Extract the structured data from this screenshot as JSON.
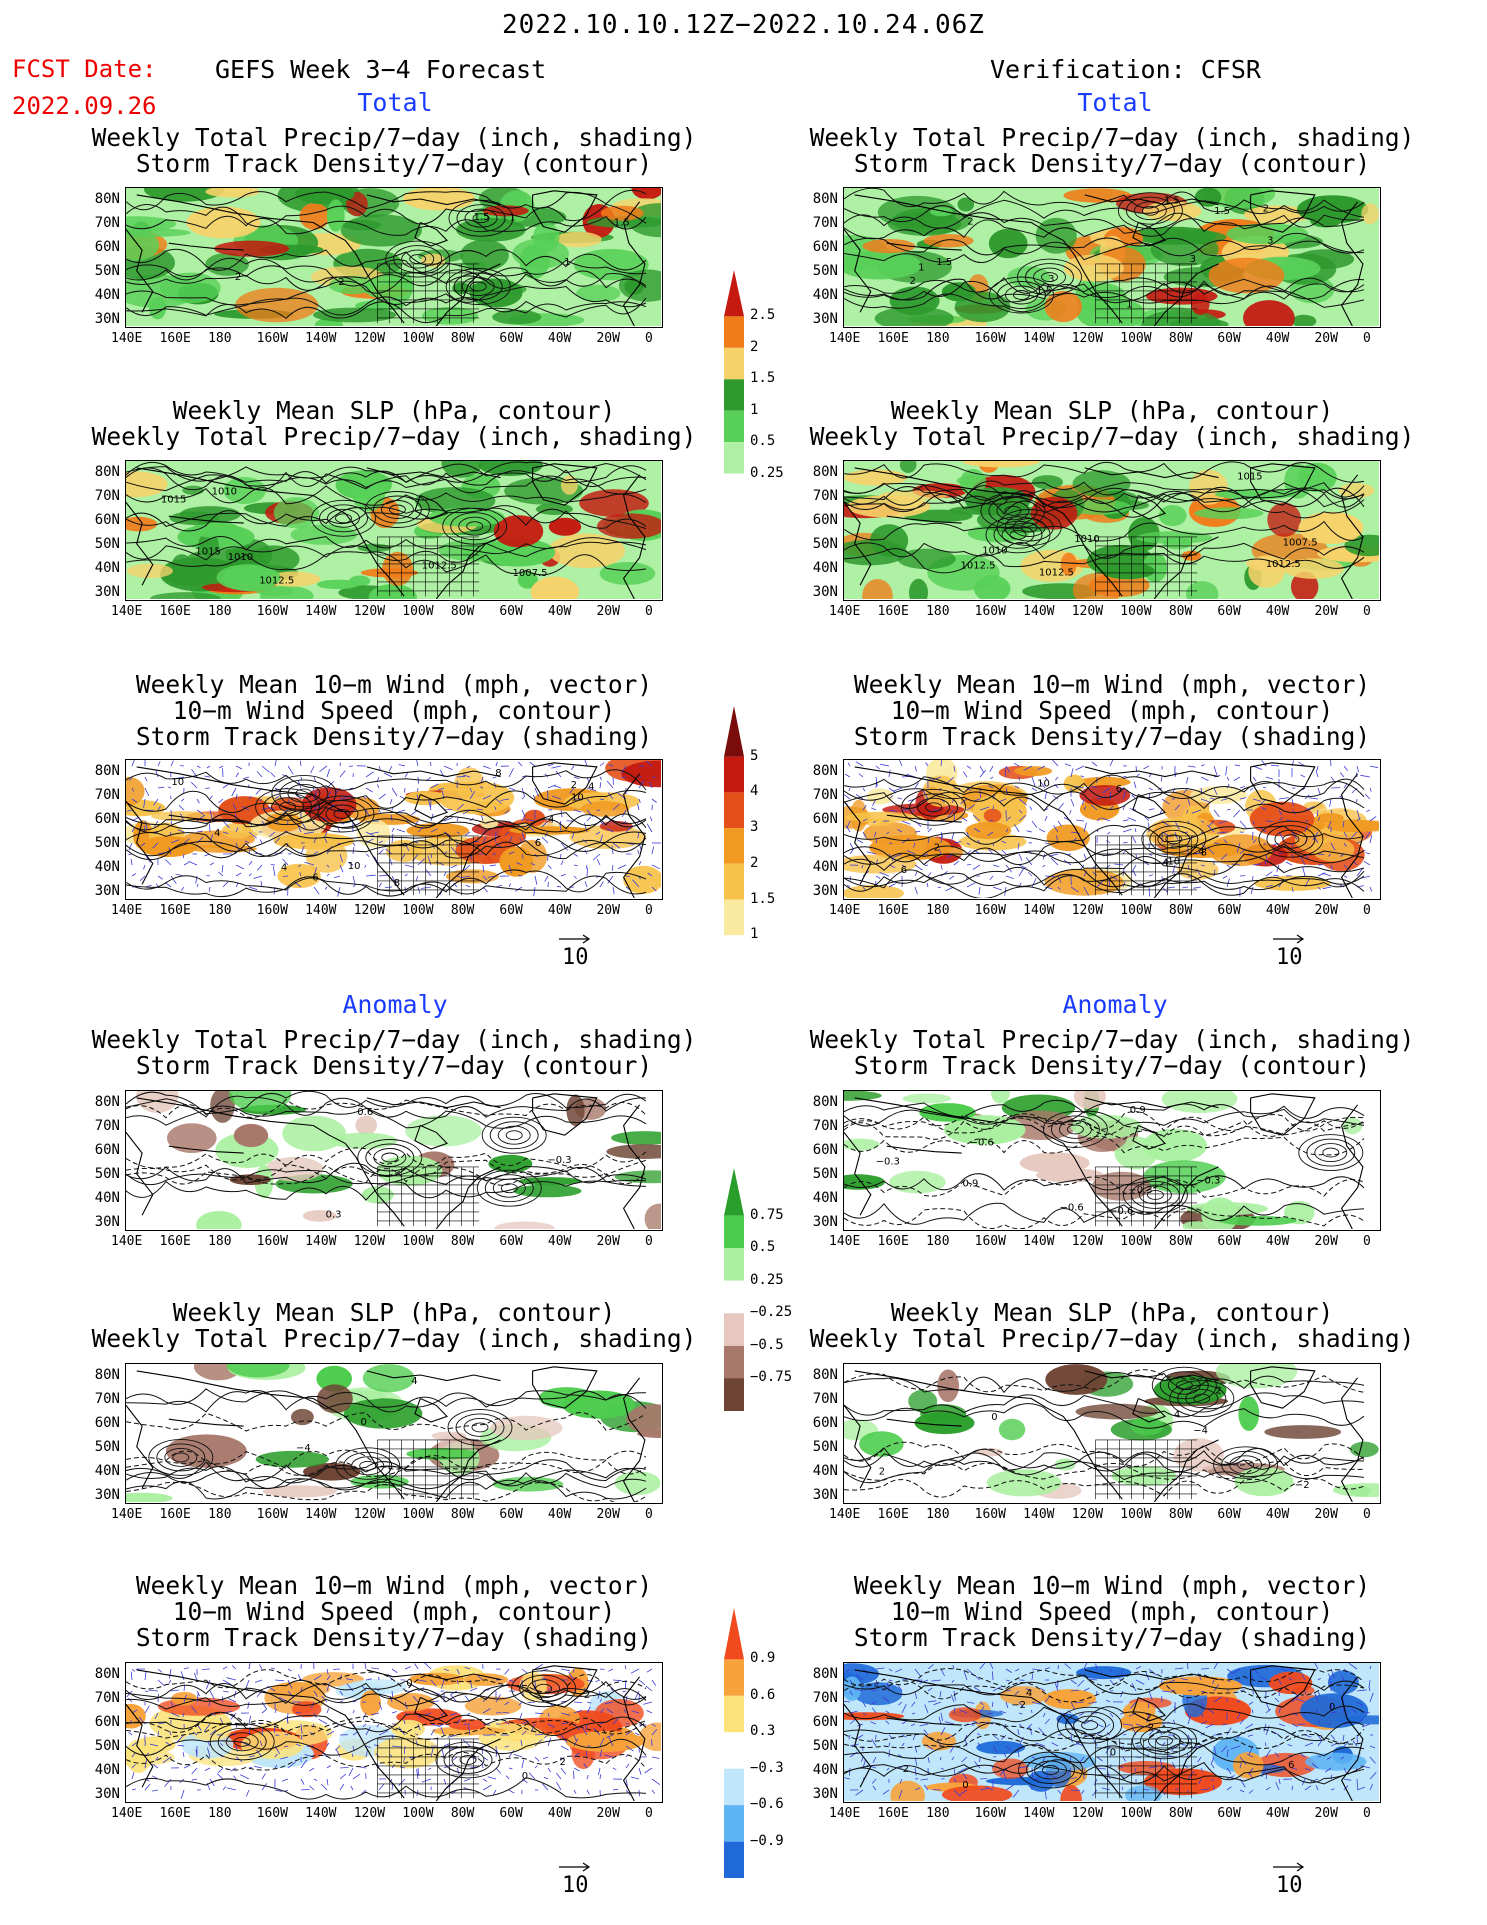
{
  "header": {
    "date_range": "2022.10.10.12Z−2022.10.24.06Z",
    "fcst_label": "FCST Date:",
    "fcst_date": "2022.09.26",
    "model_title": "GEFS Week 3−4 Forecast",
    "verif_title": "Verification: CFSR"
  },
  "sections": {
    "total": "Total",
    "anomaly": "Anomaly"
  },
  "panel_titles": {
    "precip_storm": [
      "Weekly Total Precip/7−day (inch, shading)",
      "Storm Track Density/7−day (contour)"
    ],
    "slp_precip": [
      "Weekly Mean SLP (hPa, contour)",
      "Weekly Total Precip/7−day (inch, shading)"
    ],
    "wind_storm": [
      "Weekly Mean 10−m Wind (mph, vector)",
      "10−m Wind Speed (mph, contour)",
      "Storm Track Density/7−day (shading)"
    ]
  },
  "axes": {
    "lat_labels": [
      "80N",
      "70N",
      "60N",
      "50N",
      "40N",
      "30N"
    ],
    "lon_labels": [
      "140E",
      "160E",
      "180",
      "160W",
      "140W",
      "120W",
      "100W",
      "80W",
      "60W",
      "40W",
      "20W",
      "0"
    ]
  },
  "vector_ref": "10",
  "colorbars": {
    "precip_total": {
      "labels": [
        "2.5",
        "2",
        "1.5",
        "1",
        "0.5",
        "0.25"
      ],
      "colors": [
        "#c41a10",
        "#f07c1a",
        "#f7d26a",
        "#2e9a2e",
        "#58d058",
        "#aef0a4",
        "#ffffff"
      ]
    },
    "storm_total": {
      "labels": [
        "5",
        "4",
        "3",
        "2",
        "1.5",
        "1"
      ],
      "colors": [
        "#7a0c0c",
        "#c41a10",
        "#e4501a",
        "#f09a22",
        "#f7c24a",
        "#faeaa0",
        "#ffffff"
      ]
    },
    "precip_anom": {
      "labels": [
        "0.75",
        "0.5",
        "0.25",
        "−0.25",
        "−0.5",
        "−0.75"
      ],
      "colors": [
        "#2a9e2a",
        "#4ccc4c",
        "#aaf0a0",
        "#ffffff",
        "#e6c8be",
        "#a8786a",
        "#6e4434"
      ]
    },
    "storm_anom": {
      "labels": [
        "0.9",
        "0.6",
        "0.3",
        "−0.3",
        "−0.6",
        "−0.9"
      ],
      "colors": [
        "#f04a1e",
        "#f7a23a",
        "#fbe27a",
        "#ffffff",
        "#bfe6fa",
        "#5fb4f4",
        "#1f6ad8"
      ]
    },
    "palette_notes": {
      "land_line": "#000000",
      "wind_vector": "#3a3ad8"
    }
  },
  "contour_values": {
    "fcst_precip_storm": [
      "1",
      "2",
      "1.5",
      "2",
      "1.5",
      "1"
    ],
    "verif_precip_storm": [
      "2",
      "1.5",
      "2",
      "1",
      "1",
      "2",
      "3",
      "1.5",
      "3",
      "1.5",
      "3",
      "1.5"
    ],
    "fcst_slp": [
      "1015",
      "1012.5",
      "1010",
      "1010",
      "1012.5",
      "1007.5",
      "1015"
    ],
    "verif_slp": [
      "1012.5",
      "1012.5",
      "1010",
      "1007.5",
      "1010",
      "1012.5",
      "1015"
    ],
    "fcst_wind": [
      "6",
      "10",
      "4",
      "2",
      "10",
      "4",
      "4",
      "8",
      "10",
      "4",
      "8",
      "6"
    ],
    "verif_wind": [
      "2",
      "4",
      "10",
      "4",
      "6",
      "8",
      "10",
      "6"
    ],
    "fcst_anom_precip": [
      "0.6",
      "−0.3",
      "0.3"
    ],
    "verif_anom_precip": [
      "−0.3",
      "−0.6",
      "0.9",
      "−0.3",
      "0.9",
      "−0.6",
      "−0.6",
      "−0.3"
    ],
    "fcst_anom_slp": [
      "0",
      "−4",
      "4"
    ],
    "verif_anom_slp": [
      "2",
      "−4",
      "2",
      "0",
      "4",
      "−2"
    ],
    "fcst_anom_wind": [
      "0",
      "2",
      "2",
      "0"
    ],
    "verif_anom_wind": [
      "0",
      "2",
      "2",
      "0",
      "−2",
      "4",
      "6",
      "2",
      "0"
    ]
  }
}
